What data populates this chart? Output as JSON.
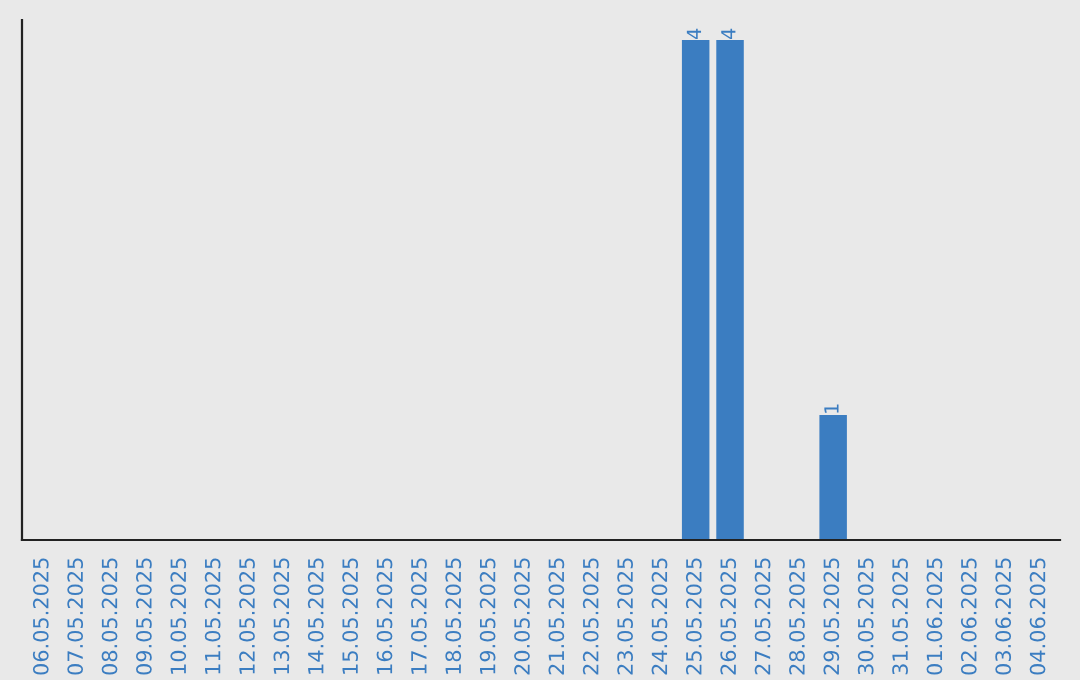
{
  "chart_data": {
    "type": "bar",
    "categories": [
      "06.05.2025",
      "07.05.2025",
      "08.05.2025",
      "09.05.2025",
      "10.05.2025",
      "11.05.2025",
      "12.05.2025",
      "13.05.2025",
      "14.05.2025",
      "15.05.2025",
      "16.05.2025",
      "17.05.2025",
      "18.05.2025",
      "19.05.2025",
      "20.05.2025",
      "21.05.2025",
      "22.05.2025",
      "23.05.2025",
      "24.05.2025",
      "25.05.2025",
      "26.05.2025",
      "27.05.2025",
      "28.05.2025",
      "29.05.2025",
      "30.05.2025",
      "31.05.2025",
      "01.06.2025",
      "02.06.2025",
      "03.06.2025",
      "04.06.2025"
    ],
    "values": [
      null,
      null,
      null,
      null,
      null,
      null,
      null,
      null,
      null,
      null,
      null,
      null,
      null,
      null,
      null,
      null,
      null,
      null,
      null,
      4,
      4,
      null,
      null,
      1,
      null,
      null,
      null,
      null,
      null,
      null
    ],
    "value_labels": [
      null,
      null,
      null,
      null,
      null,
      null,
      null,
      null,
      null,
      null,
      null,
      null,
      null,
      null,
      null,
      null,
      null,
      null,
      null,
      "4",
      "4",
      null,
      null,
      "1",
      null,
      null,
      null,
      null,
      null,
      null
    ],
    "color": "#3b7dc1",
    "tick_labels": "x",
    "grid": false,
    "legend": false
  }
}
